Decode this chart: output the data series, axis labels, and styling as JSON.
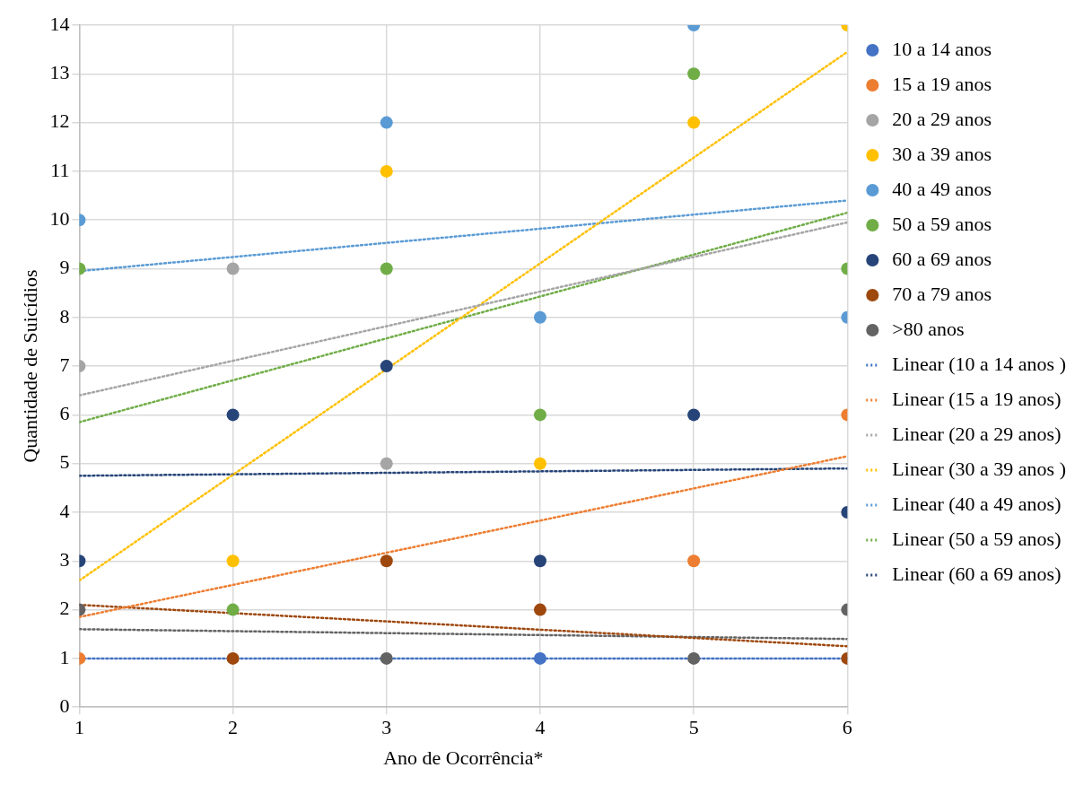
{
  "chart_data": {
    "type": "scatter",
    "xlabel": "Ano de Ocorrência*",
    "ylabel": "Quantidade de Suicídios",
    "x": [
      1,
      2,
      3,
      4,
      5,
      6
    ],
    "xlim": [
      1,
      6
    ],
    "xticks": [
      1,
      2,
      3,
      4,
      5,
      6
    ],
    "ylim": [
      0,
      14
    ],
    "yticks": [
      0,
      1,
      2,
      3,
      4,
      5,
      6,
      7,
      8,
      9,
      10,
      11,
      12,
      13,
      14
    ],
    "grid": true,
    "legend": "right",
    "marker": "circle",
    "series": [
      {
        "name": "10 a 14 anos",
        "color": "#4472c4",
        "values": [
          null,
          null,
          null,
          1,
          null,
          null
        ]
      },
      {
        "name": "15 a 19 anos",
        "color": "#ed7d31",
        "values": [
          1,
          null,
          null,
          null,
          3,
          6
        ]
      },
      {
        "name": "20 a 29 anos",
        "color": "#a5a5a5",
        "values": [
          7,
          9,
          5,
          null,
          null,
          null
        ]
      },
      {
        "name": "30 a 39 anos",
        "color": "#ffc000",
        "values": [
          null,
          3,
          11,
          5,
          12,
          14
        ]
      },
      {
        "name": "40 a 49 anos",
        "color": "#5b9bd5",
        "values": [
          10,
          null,
          12,
          8,
          14,
          8
        ]
      },
      {
        "name": "50 a 59 anos",
        "color": "#70ad47",
        "values": [
          9,
          2,
          9,
          6,
          13,
          9
        ]
      },
      {
        "name": "60 a 69 anos",
        "color": "#264478",
        "values": [
          3,
          6,
          7,
          3,
          6,
          4
        ]
      },
      {
        "name": "70 a 79 anos",
        "color": "#9e480e",
        "values": [
          null,
          1,
          3,
          2,
          null,
          1
        ]
      },
      {
        "name": ">80 anos",
        "color": "#636363",
        "values": [
          2,
          null,
          1,
          null,
          1,
          2
        ]
      },
      {
        "name": "Linear (10 a 14 anos )",
        "type": "line",
        "color": "#4472c4",
        "values": [
          1,
          null,
          null,
          null,
          null,
          1
        ],
        "line_style": "dotted",
        "marker": "none"
      },
      {
        "name": "Linear (15 a 19 anos)",
        "type": "line",
        "color": "#ed7d31",
        "values": [
          1.85,
          null,
          null,
          null,
          null,
          5.15
        ],
        "line_style": "dotted",
        "marker": "none"
      },
      {
        "name": "Linear (20 a 29 anos)",
        "type": "line",
        "color": "#a5a5a5",
        "values": [
          6.4,
          null,
          null,
          null,
          null,
          9.95
        ],
        "line_style": "dotted",
        "marker": "none"
      },
      {
        "name": "Linear (30 a 39 anos )",
        "type": "line",
        "color": "#ffc000",
        "values": [
          2.6,
          null,
          null,
          null,
          null,
          13.45
        ],
        "line_style": "dotted",
        "marker": "none"
      },
      {
        "name": "Linear (40 a 49 anos)",
        "type": "line",
        "color": "#5b9bd5",
        "values": [
          8.95,
          null,
          null,
          null,
          null,
          10.4
        ],
        "line_style": "dotted",
        "marker": "none"
      },
      {
        "name": "Linear (50 a 59 anos)",
        "type": "line",
        "color": "#70ad47",
        "values": [
          5.85,
          null,
          null,
          null,
          null,
          10.15
        ],
        "line_style": "dotted",
        "marker": "none"
      },
      {
        "name": "Linear (60 a 69 anos)",
        "type": "line",
        "color": "#264478",
        "values": [
          4.75,
          null,
          null,
          null,
          null,
          4.9
        ],
        "line_style": "dotted",
        "marker": "none"
      },
      {
        "type": "line",
        "color": "#9e480e",
        "values": [
          2.1,
          null,
          null,
          null,
          null,
          1.25
        ],
        "line_style": "dotted",
        "marker": "none"
      },
      {
        "type": "line",
        "color": "#636363",
        "values": [
          1.6,
          null,
          null,
          null,
          null,
          1.4
        ],
        "line_style": "dotted",
        "marker": "none"
      }
    ]
  }
}
